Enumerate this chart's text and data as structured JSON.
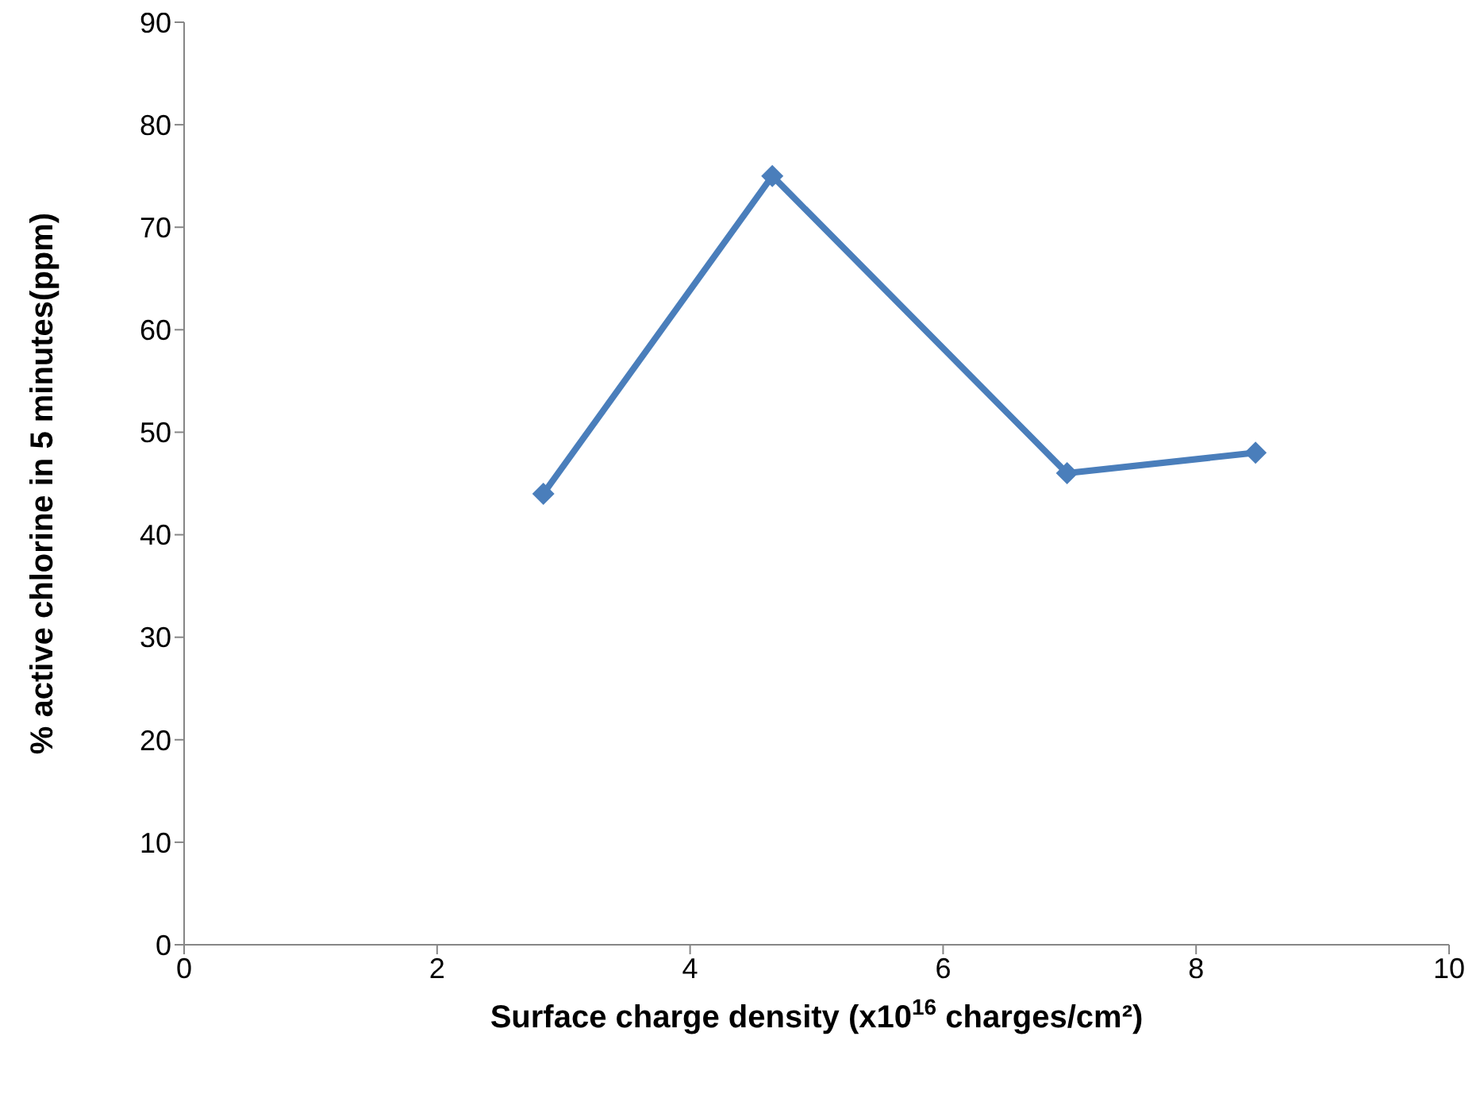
{
  "chart_data": {
    "type": "line",
    "xlabel": "Surface charge density (x10$^{16}$ charges/cm²)",
    "ylabel": "% active chlorine in 5 minutes(ppm)",
    "x": [
      2.84,
      4.65,
      6.98,
      8.47
    ],
    "series": [
      {
        "color": "#4a7ebb",
        "values": [
          44,
          75,
          46,
          48
        ]
      }
    ],
    "xlim": [
      0,
      10
    ],
    "xticks": [
      0,
      2,
      4,
      6,
      8,
      10
    ],
    "ylim": [
      0,
      90
    ],
    "yticks": [
      0,
      10,
      20,
      30,
      40,
      50,
      60,
      70,
      80,
      90
    ],
    "marker": "diamond",
    "line_style": "solid"
  }
}
